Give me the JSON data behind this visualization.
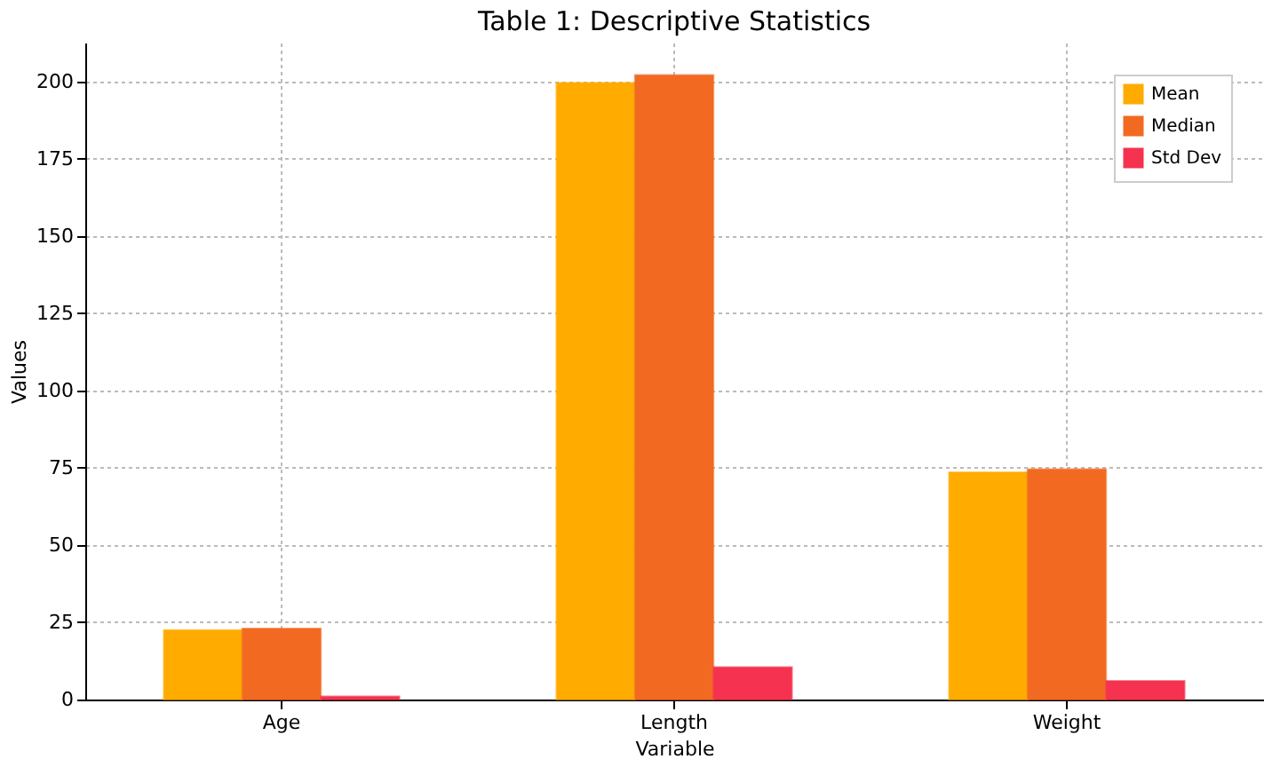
{
  "chart_data": {
    "type": "bar",
    "title": "Table 1: Descriptive Statistics",
    "xlabel": "Variable",
    "ylabel": "Values",
    "categories": [
      "Age",
      "Length",
      "Weight"
    ],
    "series": [
      {
        "name": "Mean",
        "color": "#ffab00",
        "values": [
          22.5,
          199.5,
          73.5
        ]
      },
      {
        "name": "Median",
        "color": "#f26a21",
        "values": [
          23,
          202,
          74.5
        ]
      },
      {
        "name": "Std Dev",
        "color": "#f5324f",
        "values": [
          1,
          10.5,
          6
        ]
      }
    ],
    "ylim": [
      0,
      212.5
    ],
    "yticks": [
      0,
      25,
      50,
      75,
      100,
      125,
      150,
      175,
      200
    ],
    "grid": true,
    "legend": "top right"
  }
}
